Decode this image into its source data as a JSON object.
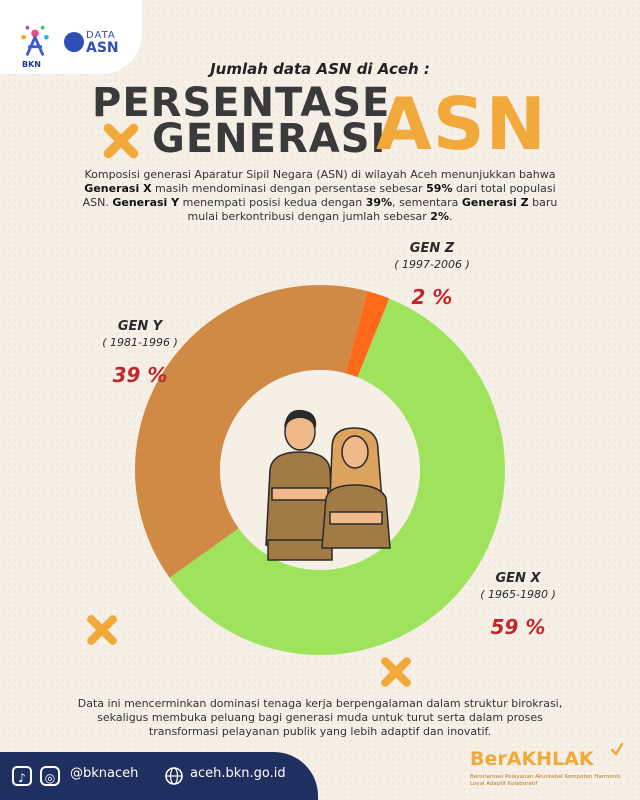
{
  "header": {
    "bkn_label": "BKN",
    "data_asn_top": "DATA",
    "data_asn_bottom": "ASN",
    "subtitle": "Jumlah data ASN di Aceh :",
    "title_line1": "PERSENTASE",
    "title_line2": "GENERASI",
    "title_big": "ASN"
  },
  "intro": {
    "p1": "Komposisi generasi Aparatur Sipil Negara (ASN) di wilayah Aceh menunjukkan bahwa ",
    "b1": "Generasi X",
    "p2": " masih mendominasi dengan persentase sebesar ",
    "b2": "59%",
    "p3": " dari total populasi ASN. ",
    "b3": "Generasi Y",
    "p4": " menempati posisi kedua dengan ",
    "b4": "39%",
    "p5": ", sementara ",
    "b5": "Generasi Z",
    "p6": " baru mulai berkontribusi dengan jumlah sebesar ",
    "b6": "2%",
    "p7": "."
  },
  "chart_data": {
    "type": "pie",
    "donut": true,
    "slices": [
      {
        "name": "GEN X",
        "range": "( 1965-1980 )",
        "value": 59,
        "pct_label": "59 %",
        "color": "#9fe35d"
      },
      {
        "name": "GEN Y",
        "range": "( 1981-1996 )",
        "value": 39,
        "pct_label": "39 %",
        "color": "#d08a45"
      },
      {
        "name": "GEN Z",
        "range": "( 1997-2006 )",
        "value": 2,
        "pct_label": "2 %",
        "color": "#ff6a1a"
      }
    ],
    "center_color": "#f6efe6",
    "label_color": "#c0282d"
  },
  "closing": "Data ini mencerminkan dominasi tenaga kerja berpengalaman dalam struktur birokrasi, sekaligus membuka peluang bagi generasi muda untuk turut serta dalam proses transformasi pelayanan publik yang lebih adaptif dan inovatif.",
  "footer": {
    "social_handle": "@bknaceh",
    "website": "aceh.bkn.go.id",
    "brand": "BerAKHLAK",
    "tagline": "Berorientasi Pelayanan Akuntabel Kompeten Harmonis Loyal Adaptif Kolaboratif"
  }
}
